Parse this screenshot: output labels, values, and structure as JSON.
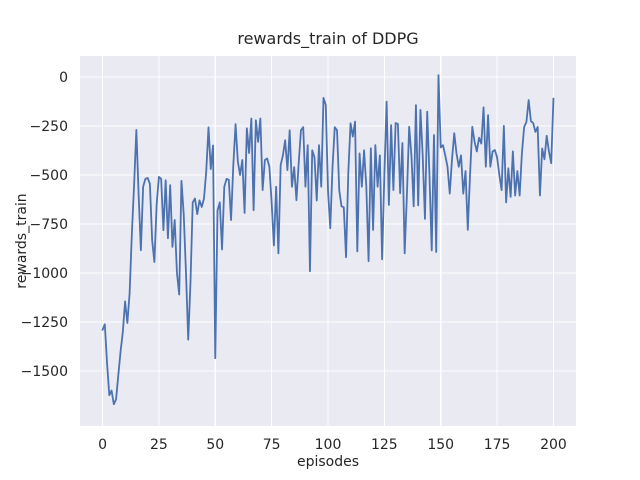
{
  "chart_data": {
    "type": "line",
    "title": "rewards_train of DDPG",
    "xlabel": "episodes",
    "ylabel": "rewards_train",
    "x_ticks": [
      0,
      25,
      50,
      75,
      100,
      125,
      150,
      175,
      200
    ],
    "x_tick_labels": [
      "0",
      "25",
      "50",
      "75",
      "100",
      "125",
      "150",
      "175",
      "200"
    ],
    "y_ticks": [
      0,
      -250,
      -500,
      -750,
      -1000,
      -1250,
      -1500
    ],
    "y_tick_labels": [
      "0",
      "−250",
      "−500",
      "−750",
      "−1000",
      "−1250",
      "−1500"
    ],
    "xlim": [
      -10,
      210
    ],
    "ylim": [
      -1781,
      107
    ],
    "grid": true,
    "legend": "none",
    "style": "seaborn-darkgrid",
    "series": [
      {
        "name": "rewards_train",
        "x_start": 0,
        "x_step": 1,
        "values": [
          -1290,
          -1262,
          -1460,
          -1624,
          -1600,
          -1670,
          -1645,
          -1520,
          -1400,
          -1300,
          -1145,
          -1255,
          -1105,
          -800,
          -550,
          -270,
          -600,
          -884,
          -560,
          -520,
          -515,
          -545,
          -833,
          -944,
          -650,
          -510,
          -520,
          -782,
          -527,
          -823,
          -552,
          -867,
          -730,
          -1000,
          -1110,
          -530,
          -700,
          -995,
          -1340,
          -1050,
          -640,
          -620,
          -700,
          -630,
          -663,
          -620,
          -480,
          -257,
          -470,
          -350,
          -1435,
          -680,
          -640,
          -880,
          -560,
          -520,
          -525,
          -730,
          -450,
          -241,
          -430,
          -500,
          -424,
          -694,
          -262,
          -388,
          -212,
          -680,
          -221,
          -331,
          -212,
          -577,
          -424,
          -416,
          -458,
          -640,
          -860,
          -560,
          -900,
          -450,
          -400,
          -323,
          -475,
          -272,
          -560,
          -460,
          -629,
          -440,
          -272,
          -256,
          -560,
          -348,
          -991,
          -374,
          -410,
          -630,
          -348,
          -560,
          -107,
          -143,
          -577,
          -772,
          -460,
          -256,
          -272,
          -580,
          -660,
          -665,
          -920,
          -490,
          -236,
          -304,
          -228,
          -890,
          -390,
          -560,
          -374,
          -560,
          -940,
          -364,
          -781,
          -348,
          -560,
          -400,
          -930,
          -500,
          -126,
          -653,
          -246,
          -577,
          -235,
          -240,
          -593,
          -337,
          -900,
          -600,
          -254,
          -400,
          -660,
          -144,
          -655,
          -168,
          -400,
          -724,
          -177,
          -500,
          -885,
          -296,
          -893,
          9,
          -360,
          -348,
          -400,
          -458,
          -595,
          -420,
          -287,
          -390,
          -458,
          -400,
          -595,
          -480,
          -780,
          -500,
          -254,
          -330,
          -380,
          -310,
          -340,
          -155,
          -458,
          -195,
          -458,
          -380,
          -373,
          -410,
          -500,
          -577,
          -250,
          -640,
          -466,
          -612,
          -380,
          -605,
          -480,
          -605,
          -390,
          -255,
          -230,
          -118,
          -225,
          -235,
          -280,
          -255,
          -605,
          -365,
          -420,
          -300,
          -380,
          -440,
          -110
        ]
      }
    ],
    "colors": {
      "line": "#4c72b0",
      "plot_bg": "#eaeaf2",
      "grid": "#ffffff",
      "figure_bg": "#ffffff",
      "text": "#262626"
    }
  }
}
